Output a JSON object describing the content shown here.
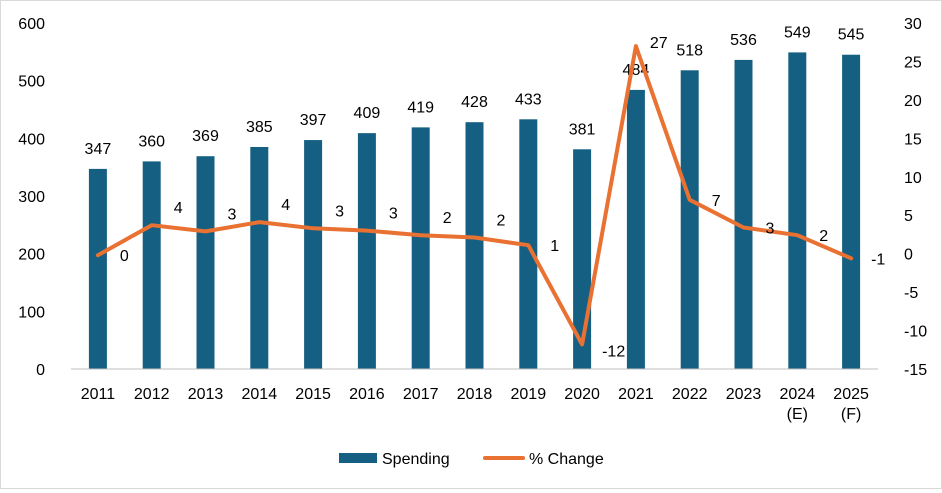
{
  "chart_data": {
    "type": "bar+line",
    "categories": [
      "2011",
      "2012",
      "2013",
      "2014",
      "2015",
      "2016",
      "2017",
      "2018",
      "2019",
      "2020",
      "2021",
      "2022",
      "2023",
      "2024\n(E)",
      "2025\n(F)"
    ],
    "series": [
      {
        "name": "Spending",
        "type": "bar",
        "axis": "left",
        "color": "#156082",
        "values": [
          347,
          360,
          369,
          385,
          397,
          409,
          419,
          428,
          433,
          381,
          484,
          518,
          536,
          549,
          545
        ]
      },
      {
        "name": "% Change",
        "type": "line",
        "axis": "right",
        "color": "#E97132",
        "values": [
          -0.2,
          3.7,
          2.9,
          4.1,
          3.3,
          3.0,
          2.4,
          2.1,
          1.1,
          -11.8,
          27.0,
          7.0,
          3.4,
          2.4,
          -0.6
        ],
        "labels": [
          "0",
          "4",
          "3",
          "4",
          "3",
          "3",
          "2",
          "2",
          "1",
          "-12",
          "27",
          "7",
          "3",
          "2",
          "-1"
        ]
      }
    ],
    "y_left": {
      "min": 0,
      "max": 600,
      "step": 100
    },
    "y_right": {
      "min": -15,
      "max": 30,
      "step": 5
    },
    "grid": false,
    "legend_position": "bottom"
  }
}
